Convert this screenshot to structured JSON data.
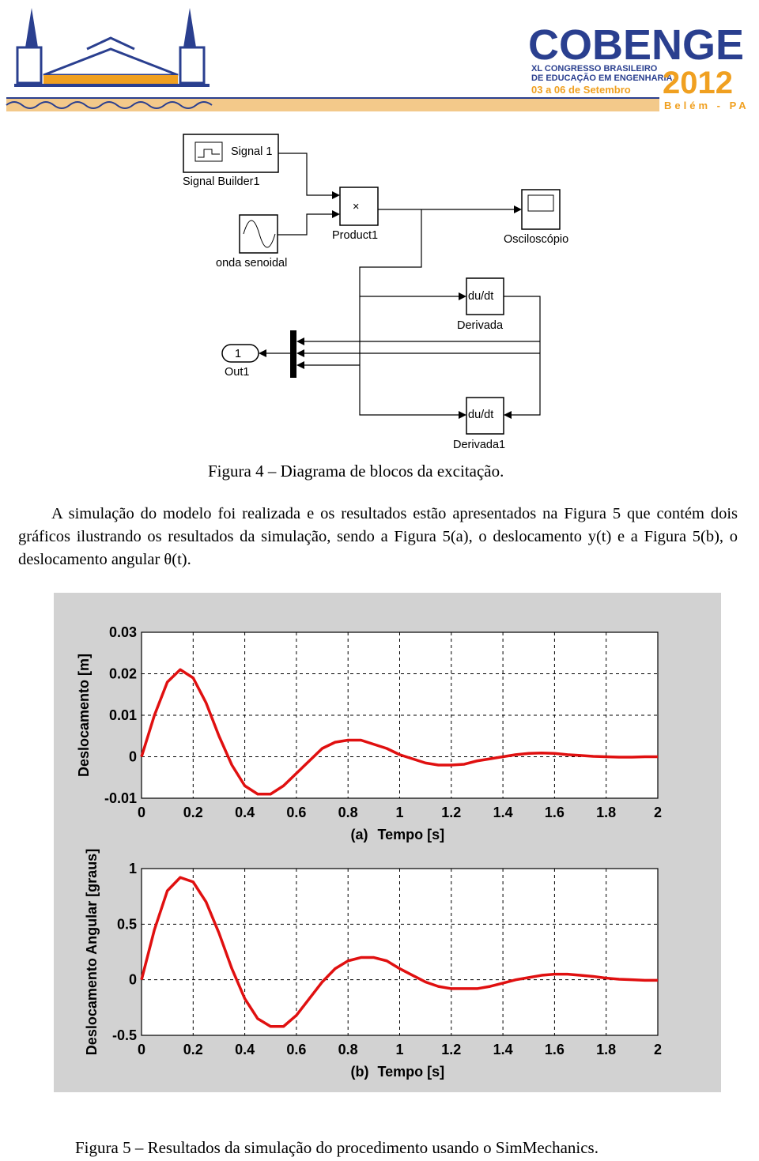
{
  "header": {
    "logo_title": "COBENGE",
    "logo_subtitle_1": "XL CONGRESSO BRASILEIRO",
    "logo_subtitle_2": "DE EDUCAÇÃO EM ENGENHARIA.",
    "logo_dates": "03 a 06 de Setembro",
    "logo_year": "2012",
    "logo_city": "Belém - PA"
  },
  "diagram": {
    "signal_builder_icon": "Signal 1",
    "signal_builder": "Signal Builder1",
    "product_symbol": "×",
    "product": "Product1",
    "scope": "Osciloscópio",
    "sine": "onda senoidal",
    "derivative_symbol": "du/dt",
    "derivative": "Derivada",
    "out_port_number": "1",
    "out_port": "Out1",
    "derivative1_symbol": "du/dt",
    "derivative1": "Derivada1"
  },
  "figure4_caption": "Figura 4 – Diagrama de blocos da excitação.",
  "paragraph": "A simulação do modelo foi realizada e os resultados estão apresentados na Figura 5 que contém dois gráficos ilustrando os resultados da simulação, sendo a Figura 5(a), o deslocamento y(t) e a Figura 5(b), o deslocamento angular θ(t).",
  "chart_data": [
    {
      "type": "line",
      "ylabel": "Deslocamento [m]",
      "panel_label": "(a)",
      "xlabel": "Tempo [s]",
      "x": [
        0,
        0.05,
        0.1,
        0.15,
        0.2,
        0.25,
        0.3,
        0.35,
        0.4,
        0.45,
        0.5,
        0.55,
        0.6,
        0.65,
        0.7,
        0.75,
        0.8,
        0.85,
        0.9,
        0.95,
        1,
        1.05,
        1.1,
        1.15,
        1.2,
        1.25,
        1.3,
        1.35,
        1.4,
        1.45,
        1.5,
        1.55,
        1.6,
        1.65,
        1.7,
        1.75,
        1.8,
        1.85,
        1.9,
        1.95,
        2
      ],
      "series": [
        {
          "color": "#e01010",
          "values": [
            0,
            0.01,
            0.018,
            0.021,
            0.019,
            0.013,
            0.005,
            -0.002,
            -0.007,
            -0.009,
            -0.009,
            -0.007,
            -0.004,
            -0.001,
            0.002,
            0.0035,
            0.004,
            0.004,
            0.003,
            0.002,
            0.0005,
            -0.0005,
            -0.0015,
            -0.002,
            -0.002,
            -0.0018,
            -0.001,
            -0.0005,
            0,
            0.0005,
            0.0008,
            0.0009,
            0.0008,
            0.0005,
            0.0003,
            0.0001,
            0,
            -0.0001,
            -0.0001,
            0,
            0
          ]
        }
      ],
      "xlim": [
        0,
        2
      ],
      "ylim": [
        -0.01,
        0.03
      ],
      "xticks": [
        0,
        0.2,
        0.4,
        0.6,
        0.8,
        1,
        1.2,
        1.4,
        1.6,
        1.8,
        2
      ],
      "yticks": [
        -0.01,
        0,
        0.01,
        0.02,
        0.03
      ],
      "grid": true
    },
    {
      "type": "line",
      "ylabel": "Deslocamento Angular [graus]",
      "panel_label": "(b)",
      "xlabel": "Tempo [s]",
      "x": [
        0,
        0.05,
        0.1,
        0.15,
        0.2,
        0.25,
        0.3,
        0.35,
        0.4,
        0.45,
        0.5,
        0.55,
        0.6,
        0.65,
        0.7,
        0.75,
        0.8,
        0.85,
        0.9,
        0.95,
        1,
        1.05,
        1.1,
        1.15,
        1.2,
        1.25,
        1.3,
        1.35,
        1.4,
        1.45,
        1.5,
        1.55,
        1.6,
        1.65,
        1.7,
        1.75,
        1.8,
        1.85,
        1.9,
        1.95,
        2
      ],
      "series": [
        {
          "color": "#e01010",
          "values": [
            0,
            0.45,
            0.8,
            0.92,
            0.88,
            0.7,
            0.42,
            0.1,
            -0.17,
            -0.35,
            -0.42,
            -0.42,
            -0.32,
            -0.17,
            -0.02,
            0.1,
            0.17,
            0.2,
            0.2,
            0.17,
            0.1,
            0.04,
            -0.02,
            -0.06,
            -0.08,
            -0.08,
            -0.08,
            -0.06,
            -0.03,
            0,
            0.02,
            0.04,
            0.05,
            0.05,
            0.04,
            0.03,
            0.015,
            0.005,
            0,
            -0.005,
            -0.005
          ]
        }
      ],
      "xlim": [
        0,
        2
      ],
      "ylim": [
        -0.5,
        1
      ],
      "xticks": [
        0,
        0.2,
        0.4,
        0.6,
        0.8,
        1,
        1.2,
        1.4,
        1.6,
        1.8,
        2
      ],
      "yticks": [
        -0.5,
        0,
        0.5,
        1
      ],
      "grid": true
    }
  ],
  "figure5_caption": "Figura 5 – Resultados da simulação do procedimento usando o SimMechanics."
}
